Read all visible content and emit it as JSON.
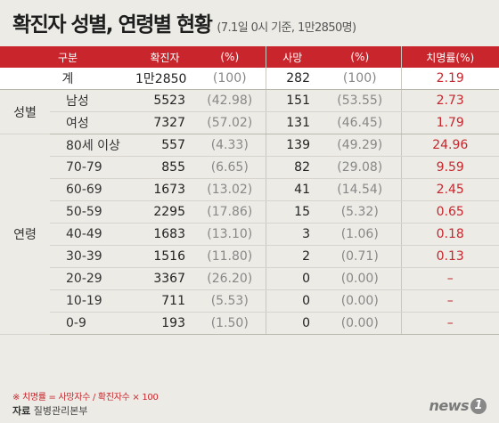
{
  "chart_data": {
    "type": "table",
    "title": "확진자 성별, 연령별 현황",
    "subtitle": "(7.1일 0시 기준, 1만2850명)",
    "columns": [
      "구분",
      "확진자",
      "(%)",
      "사망",
      "(%)",
      "치명률(%)"
    ],
    "total": {
      "label": "계",
      "cases": "1만2850",
      "cases_pct": "(100)",
      "deaths": "282",
      "deaths_pct": "(100)",
      "fatality": "2.19"
    },
    "gender_group": "성별",
    "gender": [
      {
        "label": "남성",
        "cases": "5523",
        "cases_pct": "(42.98)",
        "deaths": "151",
        "deaths_pct": "(53.55)",
        "fatality": "2.73"
      },
      {
        "label": "여성",
        "cases": "7327",
        "cases_pct": "(57.02)",
        "deaths": "131",
        "deaths_pct": "(46.45)",
        "fatality": "1.79"
      }
    ],
    "age_group": "연령",
    "age": [
      {
        "label": "80세 이상",
        "cases": "557",
        "cases_pct": "(4.33)",
        "deaths": "139",
        "deaths_pct": "(49.29)",
        "fatality": "24.96"
      },
      {
        "label": "70-79",
        "cases": "855",
        "cases_pct": "(6.65)",
        "deaths": "82",
        "deaths_pct": "(29.08)",
        "fatality": "9.59"
      },
      {
        "label": "60-69",
        "cases": "1673",
        "cases_pct": "(13.02)",
        "deaths": "41",
        "deaths_pct": "(14.54)",
        "fatality": "2.45"
      },
      {
        "label": "50-59",
        "cases": "2295",
        "cases_pct": "(17.86)",
        "deaths": "15",
        "deaths_pct": "(5.32)",
        "fatality": "0.65"
      },
      {
        "label": "40-49",
        "cases": "1683",
        "cases_pct": "(13.10)",
        "deaths": "3",
        "deaths_pct": "(1.06)",
        "fatality": "0.18"
      },
      {
        "label": "30-39",
        "cases": "1516",
        "cases_pct": "(11.80)",
        "deaths": "2",
        "deaths_pct": "(0.71)",
        "fatality": "0.13"
      },
      {
        "label": "20-29",
        "cases": "3367",
        "cases_pct": "(26.20)",
        "deaths": "0",
        "deaths_pct": "(0.00)",
        "fatality": "–"
      },
      {
        "label": "10-19",
        "cases": "711",
        "cases_pct": "(5.53)",
        "deaths": "0",
        "deaths_pct": "(0.00)",
        "fatality": "–"
      },
      {
        "label": "0-9",
        "cases": "193",
        "cases_pct": "(1.50)",
        "deaths": "0",
        "deaths_pct": "(0.00)",
        "fatality": "–"
      }
    ],
    "footnote": "※ 치명률 = 사망자수 / 확진자수 × 100",
    "source_label": "자료",
    "source_value": "질병관리본부"
  },
  "logo": {
    "text": "news",
    "badge": "1"
  },
  "colors": {
    "accent": "#c8262c",
    "background": "#ecebe6",
    "header_text": "#ffffff"
  }
}
